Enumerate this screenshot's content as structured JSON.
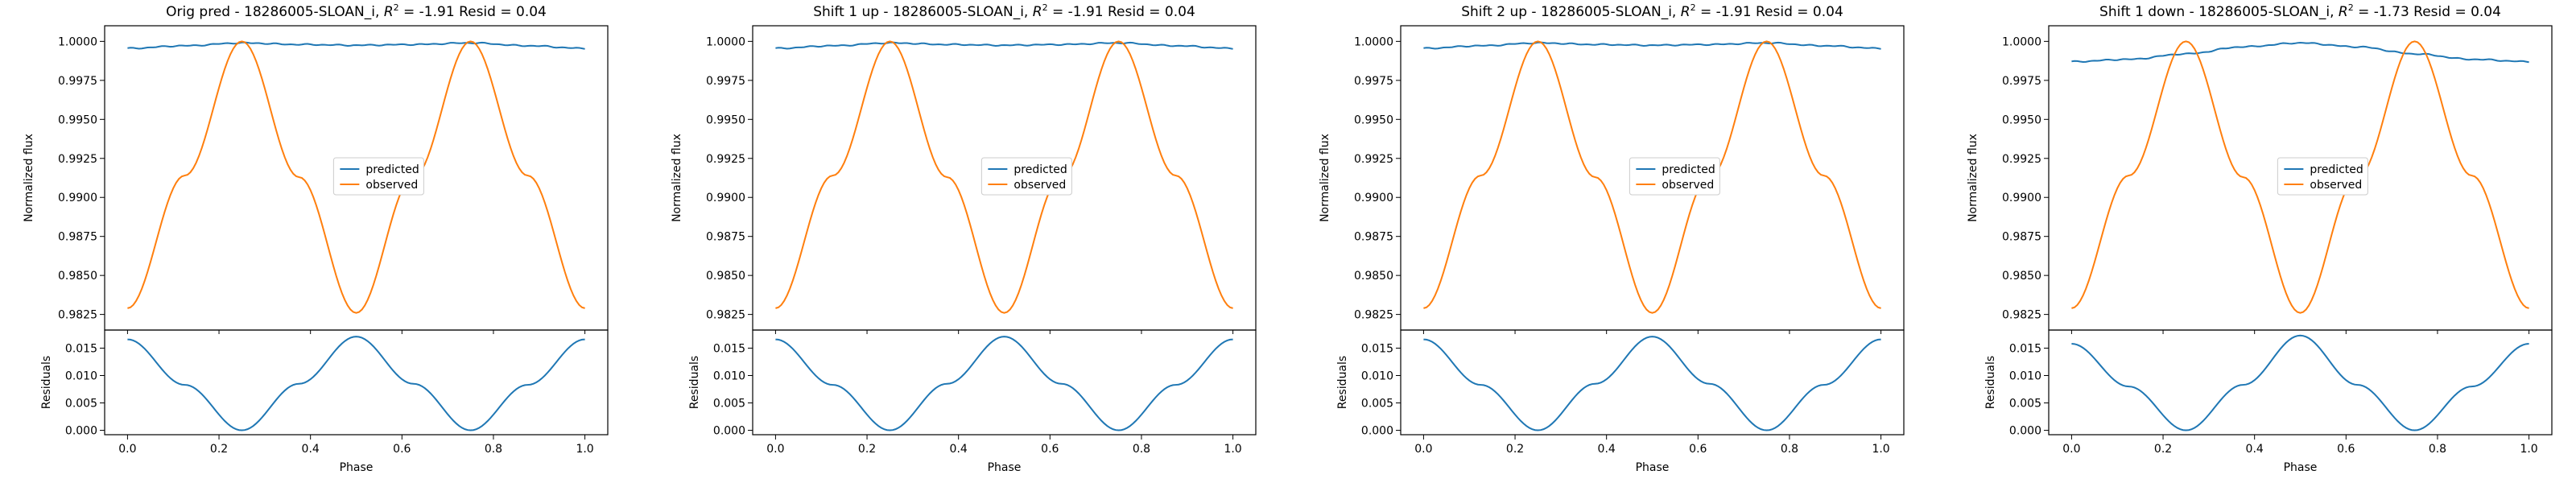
{
  "colors": {
    "predicted": "#1f77b4",
    "observed": "#ff7f0e",
    "axes": "#000000",
    "background": "#ffffff"
  },
  "legend": {
    "placement": "center",
    "entries": [
      "predicted",
      "observed"
    ]
  },
  "chart_data": [
    {
      "type": "line",
      "title_prefix": "Orig pred - 18286005-SLOAN_i, ",
      "title_r2": "R",
      "title_r2_sup": "2",
      "title_suffix": " = -1.91 Resid = 0.04",
      "ylabel": "Normalized flux",
      "ylim": [
        0.9815,
        1.001
      ],
      "yticks": [
        "0.9825",
        "0.9850",
        "0.9875",
        "0.9900",
        "0.9925",
        "0.9950",
        "0.9975",
        "1.0000"
      ],
      "series": [
        {
          "name": "predicted",
          "x": [
            0,
            0.125,
            0.25,
            0.375,
            0.5,
            0.625,
            0.75,
            0.875,
            1.0
          ],
          "values": [
            0.99955,
            0.99972,
            0.9999,
            0.9998,
            0.99975,
            0.9998,
            0.9999,
            0.99972,
            0.99955
          ]
        },
        {
          "name": "observed",
          "x": [
            0,
            0.125,
            0.25,
            0.375,
            0.5,
            0.625,
            0.75,
            0.875,
            1.0
          ],
          "values": [
            0.9829,
            0.9914,
            1.0,
            0.9913,
            0.9826,
            0.9913,
            1.0,
            0.9914,
            0.9829
          ]
        }
      ],
      "residuals": {
        "ylabel": "Residuals",
        "xlabel": "Phase",
        "ylim": [
          -0.0008,
          0.0183
        ],
        "yticks": [
          "0.000",
          "0.005",
          "0.010",
          "0.015"
        ],
        "xticks": [
          "0.0",
          "0.2",
          "0.4",
          "0.6",
          "0.8",
          "1.0"
        ],
        "x": [
          0,
          0.125,
          0.25,
          0.375,
          0.5,
          0.625,
          0.75,
          0.875,
          1.0
        ],
        "values": [
          0.0166,
          0.0083,
          0.0,
          0.0085,
          0.0171,
          0.0085,
          0.0,
          0.0083,
          0.0166
        ]
      }
    },
    {
      "type": "line",
      "title_prefix": "Shift 1 up - 18286005-SLOAN_i, ",
      "title_r2": "R",
      "title_r2_sup": "2",
      "title_suffix": " = -1.91 Resid = 0.04",
      "ylabel": "Normalized flux",
      "ylim": [
        0.9815,
        1.001
      ],
      "yticks": [
        "0.9825",
        "0.9850",
        "0.9875",
        "0.9900",
        "0.9925",
        "0.9950",
        "0.9975",
        "1.0000"
      ],
      "series": [
        {
          "name": "predicted",
          "x": [
            0,
            0.125,
            0.25,
            0.375,
            0.5,
            0.625,
            0.75,
            0.875,
            1.0
          ],
          "values": [
            0.99955,
            0.99972,
            0.9999,
            0.9998,
            0.99975,
            0.9998,
            0.9999,
            0.99972,
            0.99955
          ]
        },
        {
          "name": "observed",
          "x": [
            0,
            0.125,
            0.25,
            0.375,
            0.5,
            0.625,
            0.75,
            0.875,
            1.0
          ],
          "values": [
            0.9829,
            0.9914,
            1.0,
            0.9913,
            0.9826,
            0.9913,
            1.0,
            0.9914,
            0.9829
          ]
        }
      ],
      "residuals": {
        "ylabel": "Residuals",
        "xlabel": "Phase",
        "ylim": [
          -0.0008,
          0.0183
        ],
        "yticks": [
          "0.000",
          "0.005",
          "0.010",
          "0.015"
        ],
        "xticks": [
          "0.0",
          "0.2",
          "0.4",
          "0.6",
          "0.8",
          "1.0"
        ],
        "x": [
          0,
          0.125,
          0.25,
          0.375,
          0.5,
          0.625,
          0.75,
          0.875,
          1.0
        ],
        "values": [
          0.0166,
          0.0083,
          0.0,
          0.0085,
          0.0171,
          0.0085,
          0.0,
          0.0083,
          0.0166
        ]
      }
    },
    {
      "type": "line",
      "title_prefix": "Shift 2 up - 18286005-SLOAN_i, ",
      "title_r2": "R",
      "title_r2_sup": "2",
      "title_suffix": " = -1.91 Resid = 0.04",
      "ylabel": "Normalized flux",
      "ylim": [
        0.9815,
        1.001
      ],
      "yticks": [
        "0.9825",
        "0.9850",
        "0.9875",
        "0.9900",
        "0.9925",
        "0.9950",
        "0.9975",
        "1.0000"
      ],
      "series": [
        {
          "name": "predicted",
          "x": [
            0,
            0.125,
            0.25,
            0.375,
            0.5,
            0.625,
            0.75,
            0.875,
            1.0
          ],
          "values": [
            0.99955,
            0.99972,
            0.9999,
            0.9998,
            0.99975,
            0.9998,
            0.9999,
            0.99972,
            0.99955
          ]
        },
        {
          "name": "observed",
          "x": [
            0,
            0.125,
            0.25,
            0.375,
            0.5,
            0.625,
            0.75,
            0.875,
            1.0
          ],
          "values": [
            0.9829,
            0.9914,
            1.0,
            0.9913,
            0.9826,
            0.9913,
            1.0,
            0.9914,
            0.9829
          ]
        }
      ],
      "residuals": {
        "ylabel": "Residuals",
        "xlabel": "Phase",
        "ylim": [
          -0.0008,
          0.0183
        ],
        "yticks": [
          "0.000",
          "0.005",
          "0.010",
          "0.015"
        ],
        "xticks": [
          "0.0",
          "0.2",
          "0.4",
          "0.6",
          "0.8",
          "1.0"
        ],
        "x": [
          0,
          0.125,
          0.25,
          0.375,
          0.5,
          0.625,
          0.75,
          0.875,
          1.0
        ],
        "values": [
          0.0166,
          0.0083,
          0.0,
          0.0085,
          0.0171,
          0.0085,
          0.0,
          0.0083,
          0.0166
        ]
      }
    },
    {
      "type": "line",
      "title_prefix": "Shift 1 down - 18286005-SLOAN_i, ",
      "title_r2": "R",
      "title_r2_sup": "2",
      "title_suffix": " = -1.73 Resid = 0.04",
      "ylabel": "Normalized flux",
      "ylim": [
        0.9815,
        1.001
      ],
      "yticks": [
        "0.9825",
        "0.9850",
        "0.9875",
        "0.9900",
        "0.9925",
        "0.9950",
        "0.9975",
        "1.0000"
      ],
      "series": [
        {
          "name": "predicted",
          "x": [
            0,
            0.125,
            0.25,
            0.375,
            0.5,
            0.625,
            0.75,
            0.875,
            1.0
          ],
          "values": [
            0.9987,
            0.99885,
            0.9992,
            0.99965,
            0.9999,
            0.99965,
            0.9992,
            0.99885,
            0.9987
          ]
        },
        {
          "name": "observed",
          "x": [
            0,
            0.125,
            0.25,
            0.375,
            0.5,
            0.625,
            0.75,
            0.875,
            1.0
          ],
          "values": [
            0.9829,
            0.9914,
            1.0,
            0.9913,
            0.9826,
            0.9913,
            1.0,
            0.9914,
            0.9829
          ]
        }
      ],
      "residuals": {
        "ylabel": "Residuals",
        "xlabel": "Phase",
        "ylim": [
          -0.0008,
          0.0183
        ],
        "yticks": [
          "0.000",
          "0.005",
          "0.010",
          "0.015"
        ],
        "xticks": [
          "0.0",
          "0.2",
          "0.4",
          "0.6",
          "0.8",
          "1.0"
        ],
        "x": [
          0,
          0.125,
          0.25,
          0.375,
          0.5,
          0.625,
          0.75,
          0.875,
          1.0
        ],
        "values": [
          0.0158,
          0.008,
          0.0,
          0.0083,
          0.0173,
          0.0083,
          0.0,
          0.008,
          0.0158
        ]
      }
    }
  ]
}
